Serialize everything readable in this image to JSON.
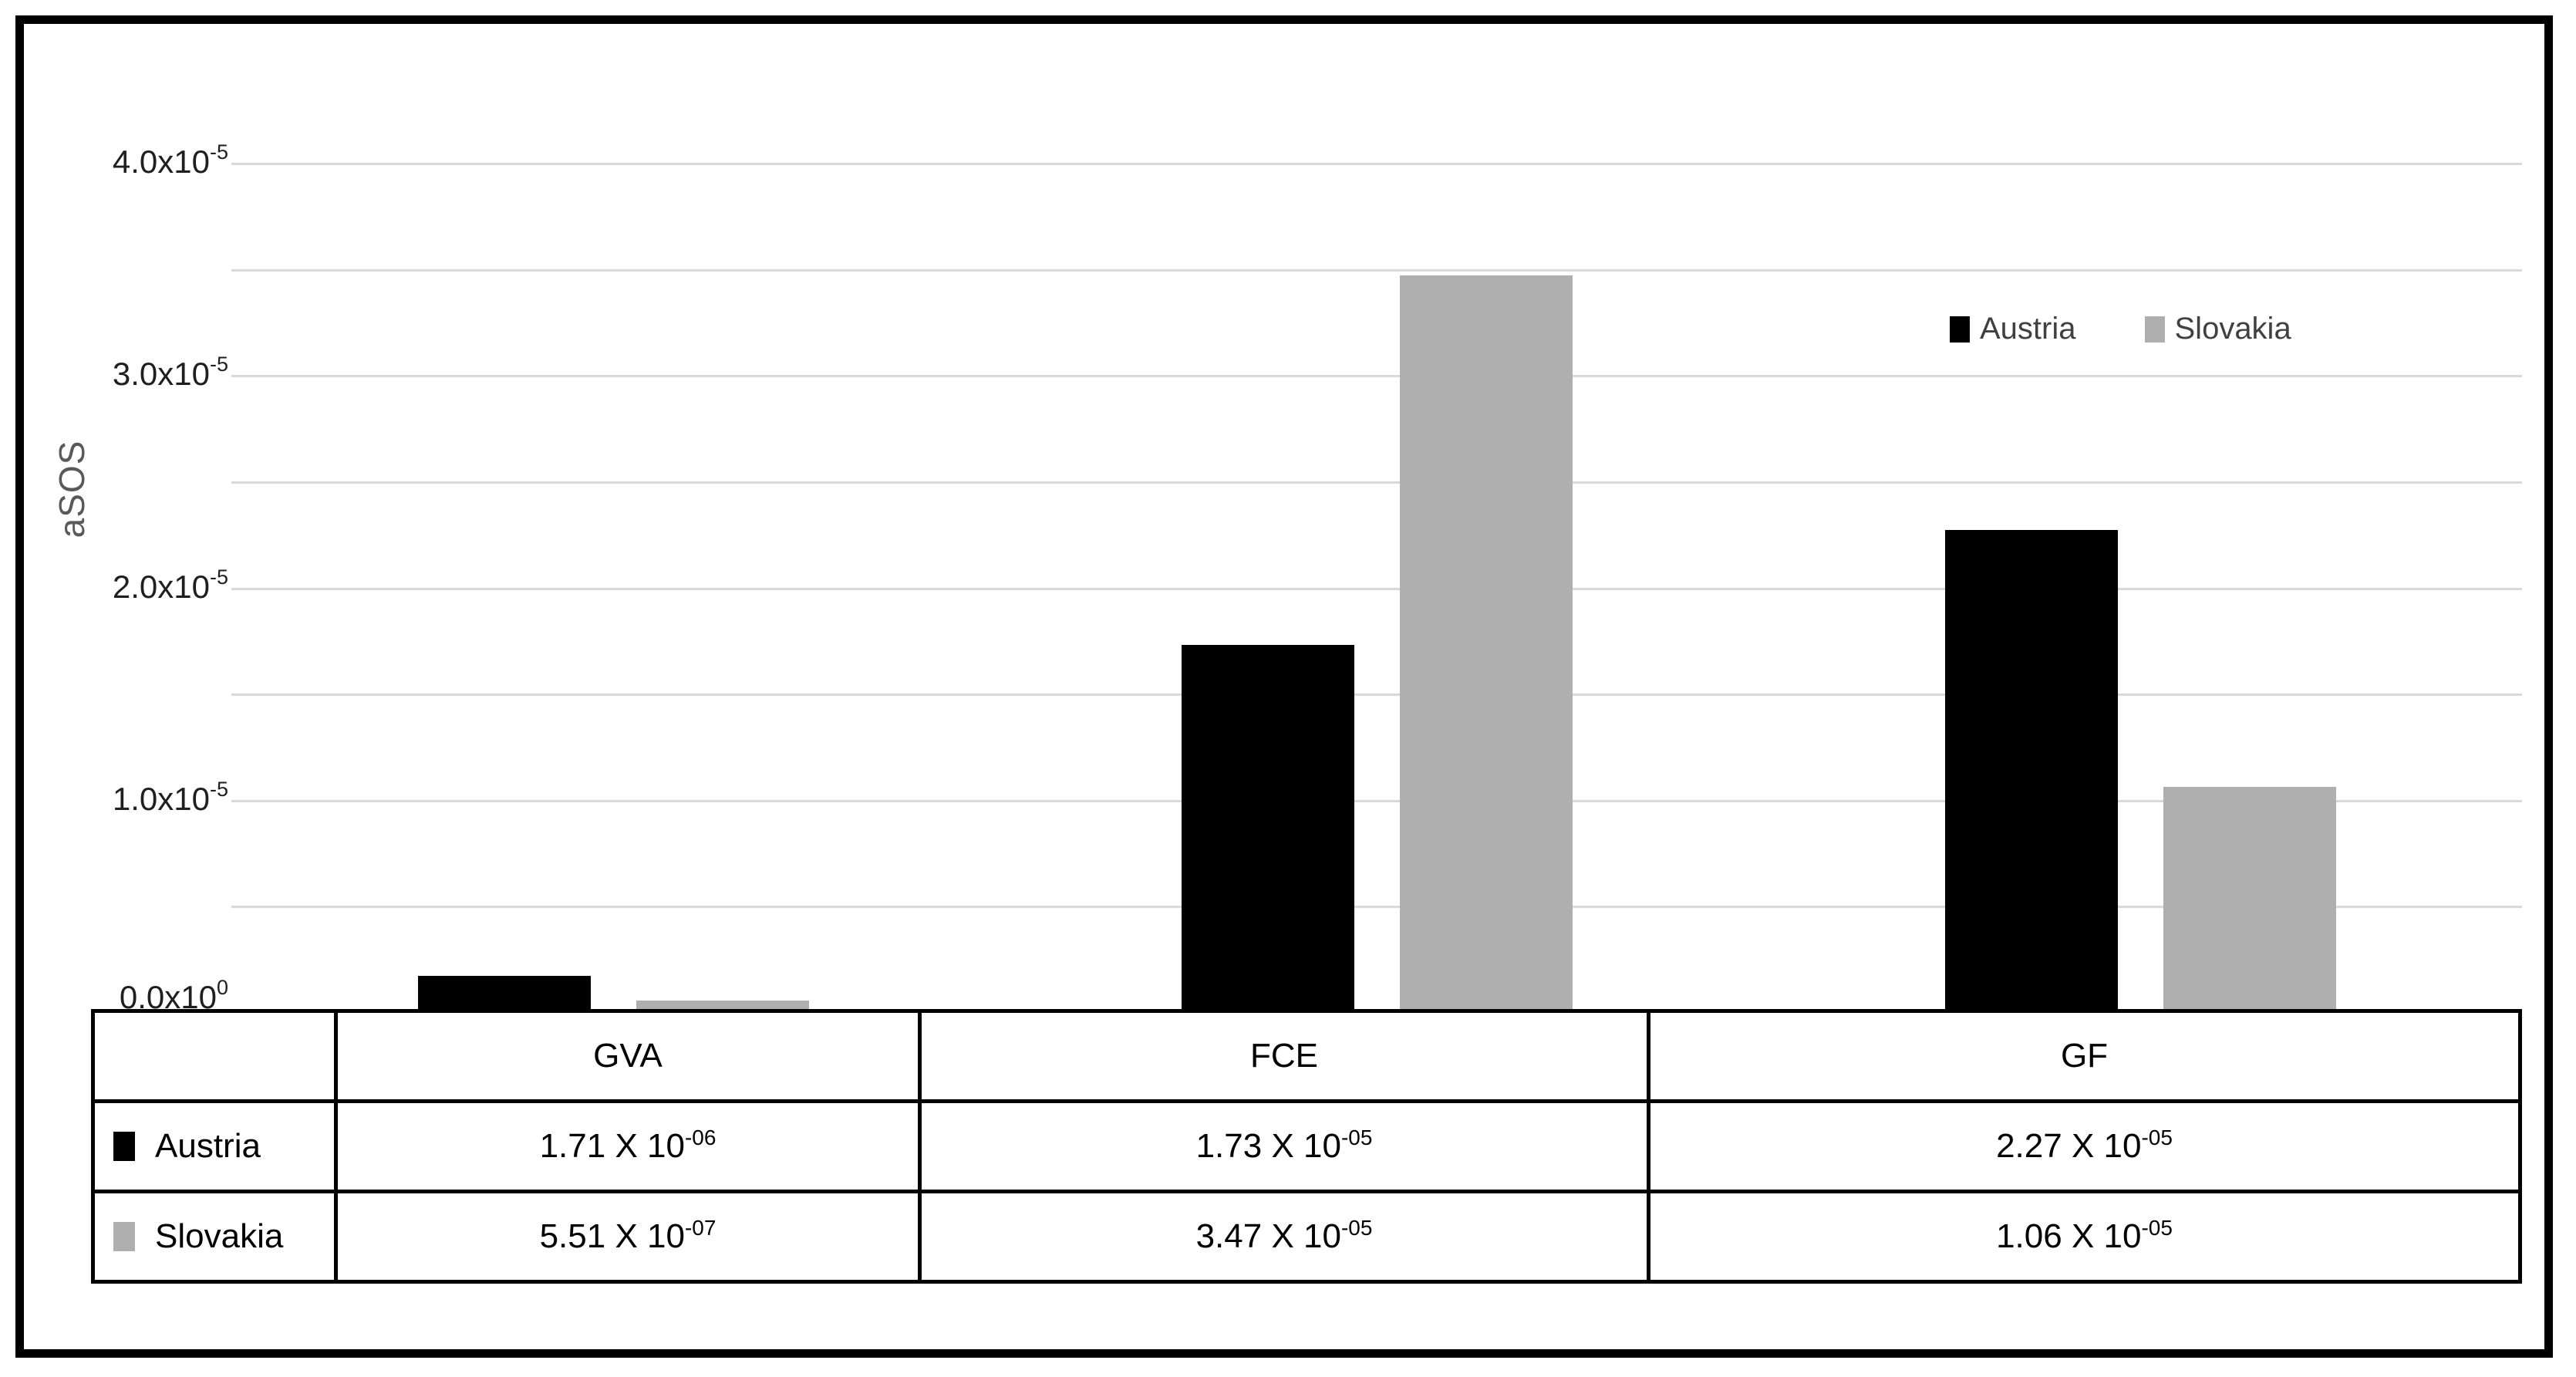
{
  "chart_data": {
    "type": "bar",
    "title": "",
    "xlabel": "",
    "ylabel": "aSOS",
    "ylim": [
      0,
      4e-05
    ],
    "y_gridline_step": 5e-06,
    "grid": true,
    "legend_position": "inside-top-right",
    "categories": [
      "GVA",
      "FCE",
      "GF"
    ],
    "series": [
      {
        "name": "Austria",
        "color": "#000000",
        "values": [
          1.71e-06,
          1.73e-05,
          2.27e-05
        ],
        "table_cells": [
          {
            "mantissa": "1.71 X 10",
            "exponent": "-06"
          },
          {
            "mantissa": "1.73 X 10",
            "exponent": "-05"
          },
          {
            "mantissa": "2.27 X 10",
            "exponent": "-05"
          }
        ]
      },
      {
        "name": "Slovakia",
        "color": "#AFAFAF",
        "values": [
          5.51e-07,
          3.47e-05,
          1.06e-05
        ],
        "table_cells": [
          {
            "mantissa": "5.51 X 10",
            "exponent": "-07"
          },
          {
            "mantissa": "3.47 X 10",
            "exponent": "-05"
          },
          {
            "mantissa": "1.06 X 10",
            "exponent": "-05"
          }
        ]
      }
    ],
    "y_ticks": [
      {
        "value": 4e-05,
        "mantissa": "4.0x10",
        "exponent": "-5"
      },
      {
        "value": 3e-05,
        "mantissa": "3.0x10",
        "exponent": "-5"
      },
      {
        "value": 2e-05,
        "mantissa": "2.0x10",
        "exponent": "-5"
      },
      {
        "value": 1e-05,
        "mantissa": "1.0x10",
        "exponent": "-5"
      },
      {
        "value": 0,
        "mantissa": "0.0x10",
        "exponent": "0"
      }
    ]
  },
  "legend": {
    "items": [
      {
        "label": "Austria",
        "color": "#000000"
      },
      {
        "label": "Slovakia",
        "color": "#AFAFAF"
      }
    ]
  },
  "colors": {
    "gridline": "#d9d9d9",
    "axis_line": "#c3c3c3",
    "frame_border": "#000000",
    "table_border": "#000000",
    "tick_text": "#1f1f1f",
    "legend_text": "#404040",
    "axis_title_text": "#595959"
  }
}
